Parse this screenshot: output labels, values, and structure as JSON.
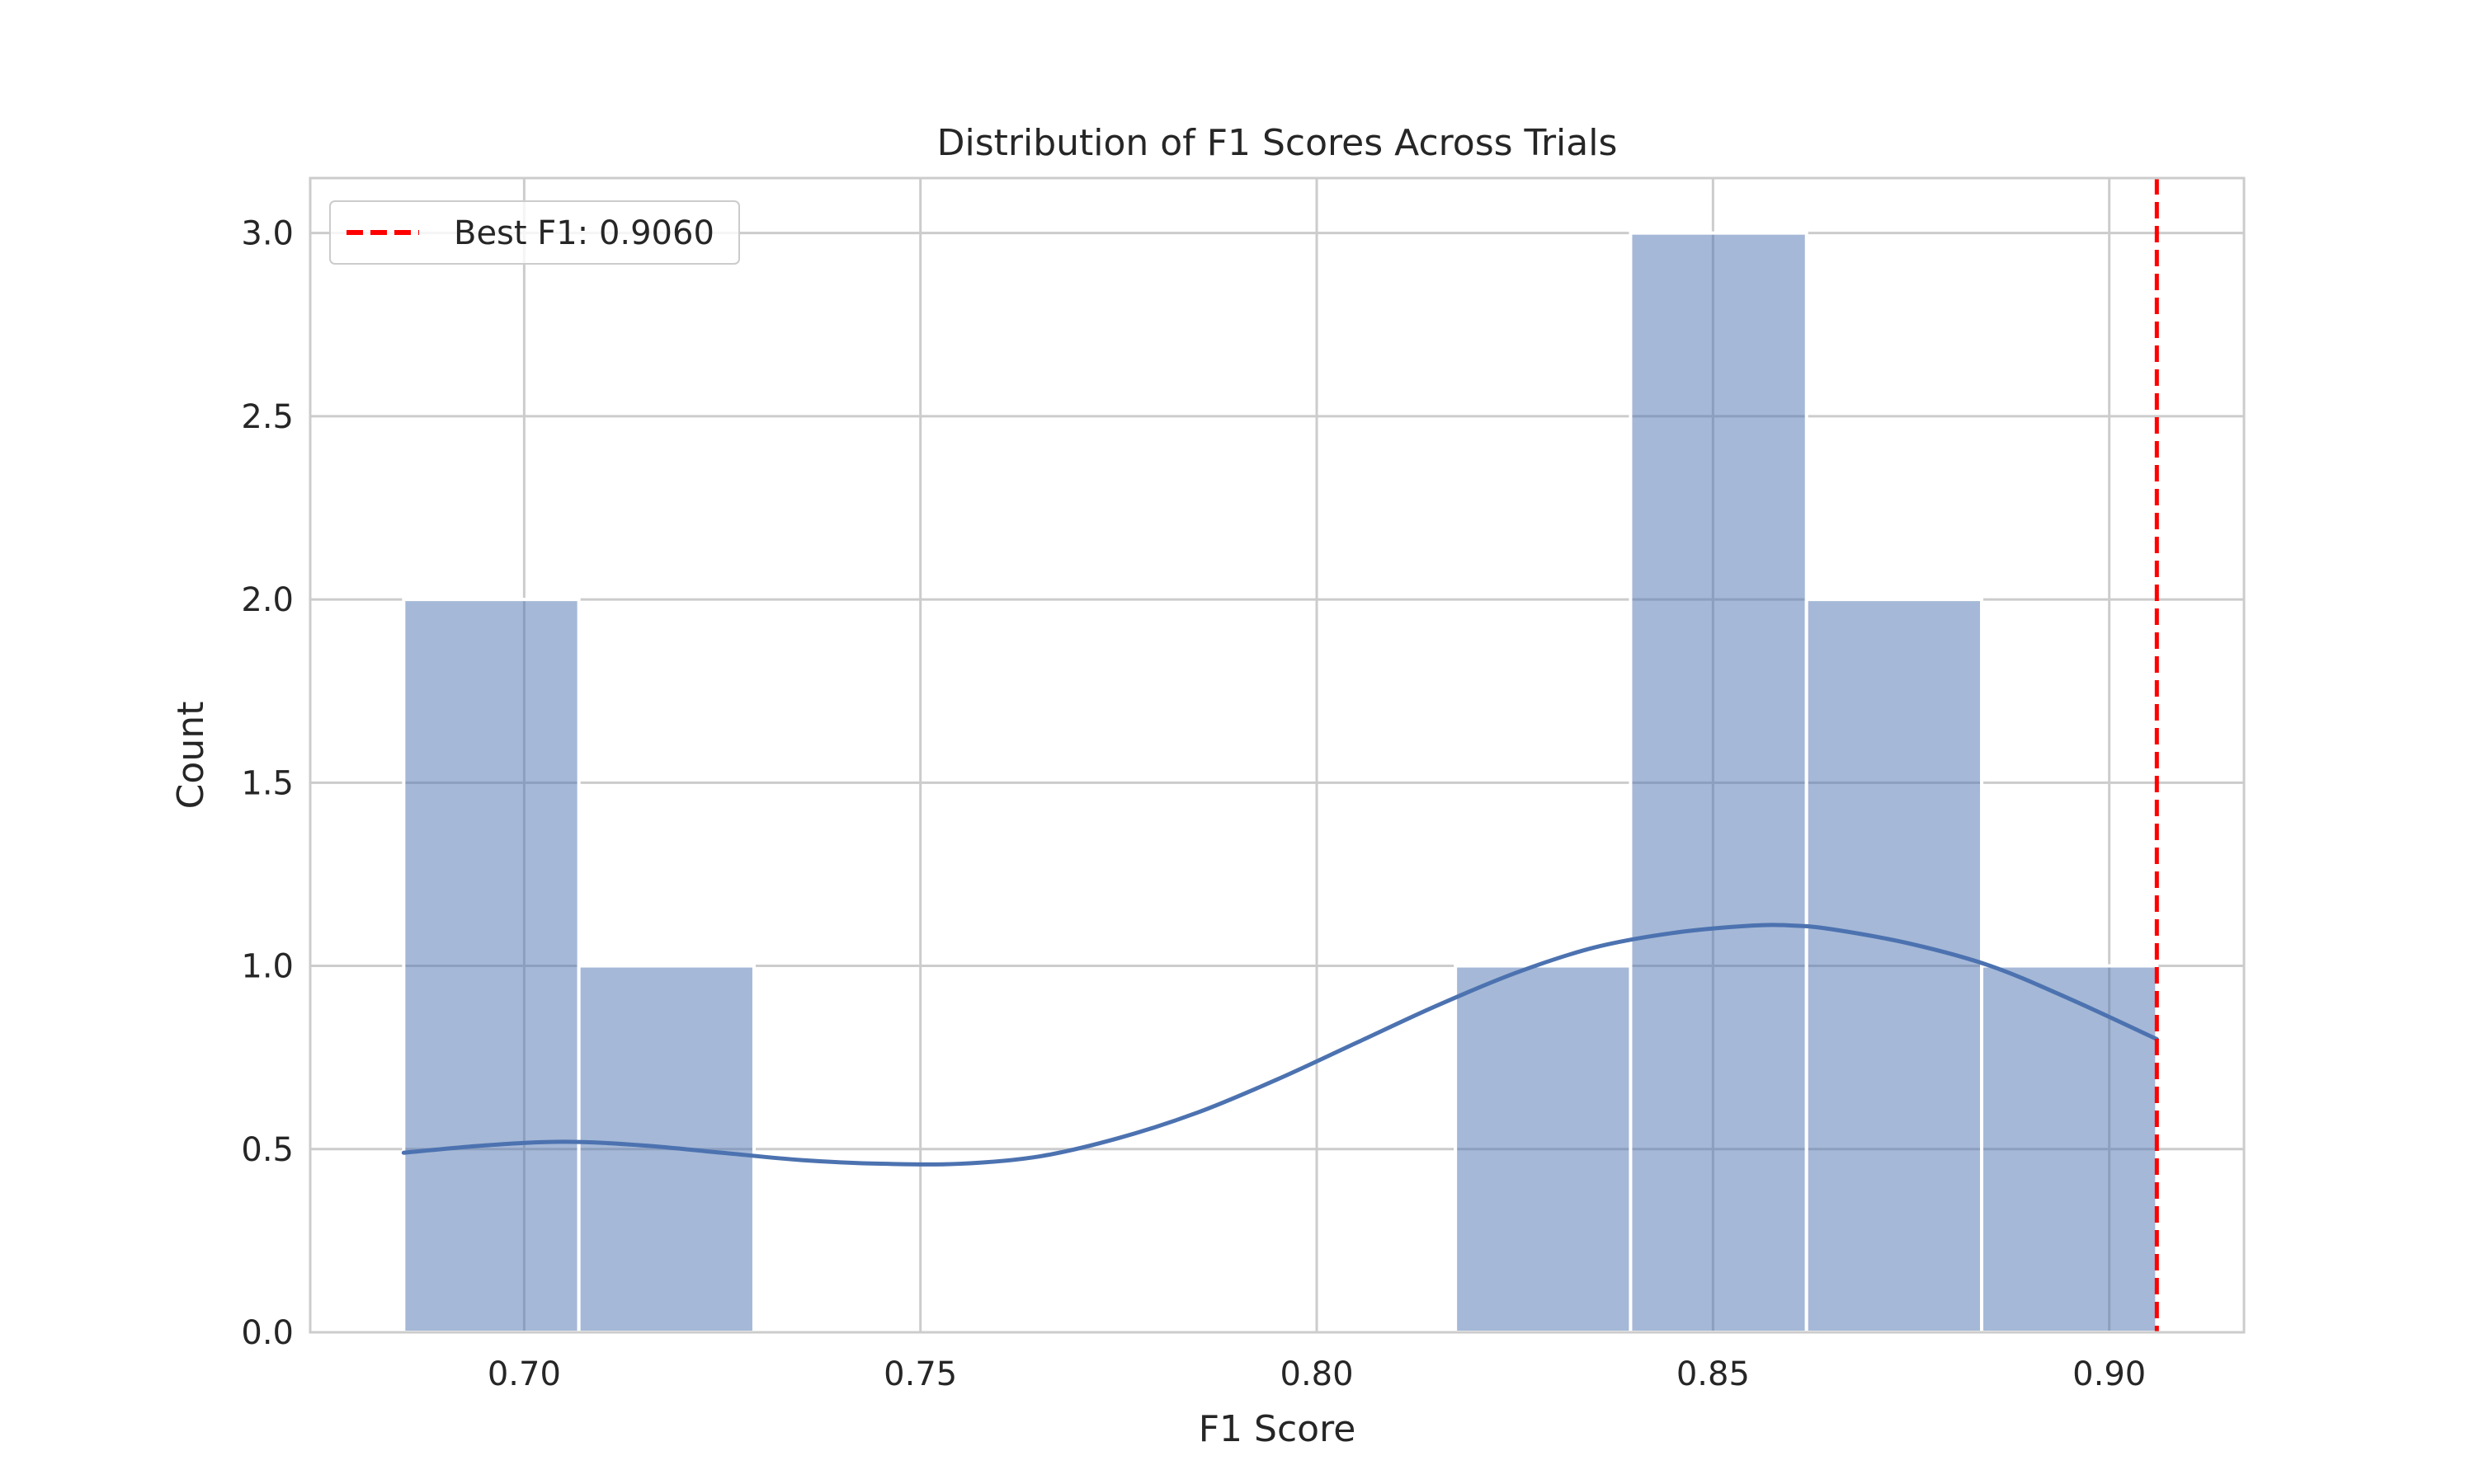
{
  "chart_data": {
    "type": "bar",
    "title": "Distribution of F1 Scores Across Trials",
    "xlabel": "F1 Score",
    "ylabel": "Count",
    "xlim": [
      0.673,
      0.917
    ],
    "ylim": [
      0,
      3.15
    ],
    "xticks": [
      "0.70",
      "0.75",
      "0.80",
      "0.85",
      "0.90"
    ],
    "xtick_values": [
      0.7,
      0.75,
      0.8,
      0.85,
      0.9
    ],
    "yticks": [
      "0.0",
      "0.5",
      "1.0",
      "1.5",
      "2.0",
      "2.5",
      "3.0"
    ],
    "ytick_values": [
      0,
      0.5,
      1.0,
      1.5,
      2.0,
      2.5,
      3.0
    ],
    "grid": true,
    "bins": [
      {
        "x0": 0.6848,
        "x1": 0.7069,
        "count": 2
      },
      {
        "x0": 0.7069,
        "x1": 0.729,
        "count": 1
      },
      {
        "x0": 0.729,
        "x1": 0.7511,
        "count": 0
      },
      {
        "x0": 0.7511,
        "x1": 0.7733,
        "count": 0
      },
      {
        "x0": 0.7733,
        "x1": 0.7954,
        "count": 0
      },
      {
        "x0": 0.7954,
        "x1": 0.8175,
        "count": 0
      },
      {
        "x0": 0.8175,
        "x1": 0.8396,
        "count": 1
      },
      {
        "x0": 0.8396,
        "x1": 0.8618,
        "count": 3
      },
      {
        "x0": 0.8618,
        "x1": 0.8839,
        "count": 2
      },
      {
        "x0": 0.8839,
        "x1": 0.906,
        "count": 1
      }
    ],
    "kde": {
      "x": [
        0.6848,
        0.695,
        0.705,
        0.715,
        0.725,
        0.735,
        0.745,
        0.755,
        0.765,
        0.775,
        0.785,
        0.795,
        0.805,
        0.815,
        0.825,
        0.835,
        0.845,
        0.855,
        0.86,
        0.865,
        0.875,
        0.885,
        0.895,
        0.906
      ],
      "y": [
        0.49,
        0.51,
        0.52,
        0.51,
        0.49,
        0.47,
        0.46,
        0.46,
        0.48,
        0.53,
        0.6,
        0.69,
        0.79,
        0.89,
        0.98,
        1.05,
        1.09,
        1.11,
        1.11,
        1.1,
        1.06,
        1.0,
        0.91,
        0.8
      ]
    },
    "vline": {
      "x": 0.906,
      "label": "Best F1: 0.9060",
      "color": "#ff0000"
    },
    "legend_position": "upper-left",
    "colors": {
      "bar_fill": "#4c72b0",
      "bar_opacity": 0.5,
      "kde_line": "#4c72b0",
      "grid": "#cccccc",
      "frame": "#cccccc"
    }
  }
}
